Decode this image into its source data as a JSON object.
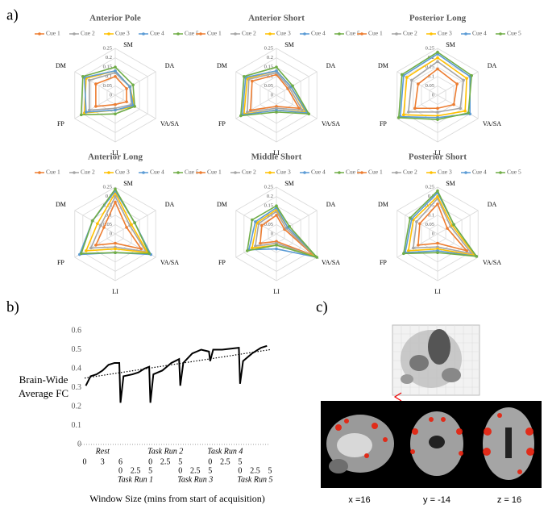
{
  "panel_labels": [
    "a)",
    "b)",
    "c)"
  ],
  "chart_data": [
    {
      "type": "radar",
      "title": "Anterior Pole",
      "categories": [
        "SM",
        "DA",
        "VA/SA",
        "LI",
        "FP",
        "DM"
      ],
      "rlim": [
        0,
        0.25
      ],
      "rticks": [
        0,
        0.05,
        0.1,
        0.15,
        0.2,
        0.25
      ],
      "series": [
        {
          "name": "Cue 1",
          "color": "#ed7d31",
          "values": [
            0.1,
            0.07,
            0.07,
            0.05,
            0.12,
            0.12
          ]
        },
        {
          "name": "Cue 2",
          "color": "#a5a5a5",
          "values": [
            0.12,
            0.09,
            0.1,
            0.07,
            0.16,
            0.16
          ]
        },
        {
          "name": "Cue 3",
          "color": "#ffc000",
          "values": [
            0.13,
            0.09,
            0.12,
            0.08,
            0.19,
            0.18
          ]
        },
        {
          "name": "Cue 4",
          "color": "#5b9bd5",
          "values": [
            0.13,
            0.09,
            0.11,
            0.08,
            0.18,
            0.19
          ]
        },
        {
          "name": "Cue 5",
          "color": "#70ad47",
          "values": [
            0.15,
            0.11,
            0.12,
            0.1,
            0.21,
            0.2
          ]
        }
      ]
    },
    {
      "type": "radar",
      "title": "Anterior Short",
      "categories": [
        "SM",
        "DA",
        "VA/SA",
        "LI",
        "FP",
        "DM"
      ],
      "rlim": [
        0,
        0.25
      ],
      "rticks": [
        0,
        0.05,
        0.1,
        0.15,
        0.2,
        0.25
      ],
      "series": [
        {
          "name": "Cue 1",
          "color": "#ed7d31",
          "values": [
            0.11,
            0.07,
            0.14,
            0.06,
            0.16,
            0.15
          ]
        },
        {
          "name": "Cue 2",
          "color": "#a5a5a5",
          "values": [
            0.12,
            0.08,
            0.16,
            0.07,
            0.18,
            0.17
          ]
        },
        {
          "name": "Cue 3",
          "color": "#ffc000",
          "values": [
            0.13,
            0.09,
            0.18,
            0.08,
            0.2,
            0.18
          ]
        },
        {
          "name": "Cue 4",
          "color": "#5b9bd5",
          "values": [
            0.13,
            0.09,
            0.19,
            0.08,
            0.21,
            0.19
          ]
        },
        {
          "name": "Cue 5",
          "color": "#70ad47",
          "values": [
            0.15,
            0.1,
            0.2,
            0.09,
            0.22,
            0.2
          ]
        }
      ]
    },
    {
      "type": "radar",
      "title": "Posterior Long",
      "categories": [
        "SM",
        "DA",
        "VA/SA",
        "LI",
        "FP",
        "DM"
      ],
      "rlim": [
        0,
        0.25
      ],
      "rticks": [
        0,
        0.05,
        0.1,
        0.15,
        0.2,
        0.25
      ],
      "series": [
        {
          "name": "Cue 1",
          "color": "#ed7d31",
          "values": [
            0.14,
            0.12,
            0.1,
            0.07,
            0.14,
            0.12
          ]
        },
        {
          "name": "Cue 2",
          "color": "#a5a5a5",
          "values": [
            0.18,
            0.16,
            0.14,
            0.09,
            0.18,
            0.16
          ]
        },
        {
          "name": "Cue 3",
          "color": "#ffc000",
          "values": [
            0.2,
            0.18,
            0.17,
            0.11,
            0.21,
            0.19
          ]
        },
        {
          "name": "Cue 4",
          "color": "#5b9bd5",
          "values": [
            0.22,
            0.2,
            0.2,
            0.12,
            0.23,
            0.21
          ]
        },
        {
          "name": "Cue 5",
          "color": "#70ad47",
          "values": [
            0.23,
            0.21,
            0.19,
            0.13,
            0.24,
            0.22
          ]
        }
      ]
    },
    {
      "type": "radar",
      "title": "Anterior Long",
      "categories": [
        "SM",
        "DA",
        "VA/SA",
        "LI",
        "FP",
        "DM"
      ],
      "rlim": [
        0,
        0.25
      ],
      "rticks": [
        0,
        0.05,
        0.1,
        0.15,
        0.2,
        0.25
      ],
      "series": [
        {
          "name": "Cue 1",
          "color": "#ed7d31",
          "values": [
            0.17,
            0.07,
            0.16,
            0.05,
            0.12,
            0.07
          ]
        },
        {
          "name": "Cue 2",
          "color": "#a5a5a5",
          "values": [
            0.2,
            0.09,
            0.19,
            0.07,
            0.15,
            0.09
          ]
        },
        {
          "name": "Cue 3",
          "color": "#ffc000",
          "values": [
            0.22,
            0.1,
            0.2,
            0.08,
            0.18,
            0.11
          ]
        },
        {
          "name": "Cue 4",
          "color": "#5b9bd5",
          "values": [
            0.23,
            0.12,
            0.22,
            0.1,
            0.22,
            0.14
          ]
        },
        {
          "name": "Cue 5",
          "color": "#70ad47",
          "values": [
            0.24,
            0.12,
            0.21,
            0.1,
            0.21,
            0.14
          ]
        }
      ]
    },
    {
      "type": "radar",
      "title": "Middle Short",
      "categories": [
        "SM",
        "DA",
        "VA/SA",
        "LI",
        "FP",
        "DM"
      ],
      "rlim": [
        0,
        0.25
      ],
      "rticks": [
        0,
        0.05,
        0.1,
        0.15,
        0.2,
        0.25
      ],
      "series": [
        {
          "name": "Cue 1",
          "color": "#ed7d31",
          "values": [
            0.1,
            0.05,
            0.23,
            0.04,
            0.1,
            0.09
          ]
        },
        {
          "name": "Cue 2",
          "color": "#a5a5a5",
          "values": [
            0.12,
            0.06,
            0.24,
            0.05,
            0.13,
            0.11
          ]
        },
        {
          "name": "Cue 3",
          "color": "#ffc000",
          "values": [
            0.13,
            0.07,
            0.24,
            0.06,
            0.15,
            0.12
          ]
        },
        {
          "name": "Cue 4",
          "color": "#5b9bd5",
          "values": [
            0.14,
            0.07,
            0.25,
            0.08,
            0.17,
            0.13
          ]
        },
        {
          "name": "Cue 5",
          "color": "#70ad47",
          "values": [
            0.15,
            0.08,
            0.25,
            0.06,
            0.18,
            0.15
          ]
        }
      ]
    },
    {
      "type": "radar",
      "title": "Posterior Short",
      "categories": [
        "SM",
        "DA",
        "VA/SA",
        "LI",
        "FP",
        "DM"
      ],
      "rlim": [
        0,
        0.25
      ],
      "rticks": [
        0,
        0.05,
        0.1,
        0.15,
        0.2,
        0.25
      ],
      "series": [
        {
          "name": "Cue 1",
          "color": "#ed7d31",
          "values": [
            0.16,
            0.06,
            0.18,
            0.05,
            0.12,
            0.11
          ]
        },
        {
          "name": "Cue 2",
          "color": "#a5a5a5",
          "values": [
            0.19,
            0.08,
            0.21,
            0.07,
            0.15,
            0.13
          ]
        },
        {
          "name": "Cue 3",
          "color": "#ffc000",
          "values": [
            0.2,
            0.09,
            0.23,
            0.08,
            0.18,
            0.15
          ]
        },
        {
          "name": "Cue 4",
          "color": "#5b9bd5",
          "values": [
            0.22,
            0.1,
            0.24,
            0.09,
            0.2,
            0.16
          ]
        },
        {
          "name": "Cue 5",
          "color": "#70ad47",
          "values": [
            0.23,
            0.1,
            0.24,
            0.1,
            0.21,
            0.17
          ]
        }
      ]
    },
    {
      "type": "line",
      "y_label": "Brain-Wide Average FC",
      "x_label": "Window Size (mins from start of acquisition)",
      "color": "#000000",
      "x": [
        0.2,
        1,
        2,
        3,
        4,
        5,
        5.8,
        6,
        6.5,
        8,
        9,
        10,
        10.8,
        11,
        11.5,
        13,
        14.5,
        15.8,
        16,
        16.5,
        18,
        19.5,
        20.8,
        21,
        21.5,
        23,
        25.8,
        26,
        26.5,
        28,
        29.5,
        30.5
      ],
      "values": [
        0.31,
        0.36,
        0.37,
        0.39,
        0.42,
        0.43,
        0.43,
        0.22,
        0.36,
        0.37,
        0.38,
        0.4,
        0.41,
        0.22,
        0.37,
        0.39,
        0.43,
        0.45,
        0.31,
        0.43,
        0.48,
        0.5,
        0.49,
        0.44,
        0.5,
        0.5,
        0.51,
        0.32,
        0.44,
        0.48,
        0.51,
        0.52
      ],
      "trendline": {
        "x": [
          0,
          31
        ],
        "values": [
          0.35,
          0.5
        ]
      },
      "xlim": [
        0,
        31
      ],
      "ylim": [
        0,
        0.6
      ],
      "yticks": [
        0,
        0.1,
        0.2,
        0.3,
        0.4,
        0.5,
        0.6
      ],
      "x_segments": [
        {
          "name": "Rest",
          "ticks": [
            0,
            3,
            6
          ]
        },
        {
          "name": "Task Run 1",
          "ticks": [
            {
              "value": 6,
              "label": "0"
            },
            {
              "value": 8.5,
              "label": "2.5"
            },
            {
              "value": 11,
              "label": "5"
            }
          ]
        },
        {
          "name": "Task Run 2",
          "ticks": [
            {
              "value": 11,
              "label": "0"
            },
            {
              "value": 13.5,
              "label": "2.5"
            },
            {
              "value": 16,
              "label": "5"
            }
          ]
        },
        {
          "name": "Task Run 3",
          "ticks": [
            {
              "value": 16,
              "label": "0"
            },
            {
              "value": 18.5,
              "label": "2.5"
            },
            {
              "value": 21,
              "label": "5"
            }
          ]
        },
        {
          "name": "Task Run 4",
          "ticks": [
            {
              "value": 21,
              "label": "0"
            },
            {
              "value": 23.5,
              "label": "2.5"
            },
            {
              "value": 26,
              "label": "5"
            }
          ]
        },
        {
          "name": "Task Run 5",
          "ticks": [
            {
              "value": 26,
              "label": "0"
            },
            {
              "value": 28.5,
              "label": "2.5"
            },
            {
              "value": 31,
              "label": "5"
            }
          ]
        }
      ]
    }
  ],
  "brain_slices": [
    "x =16",
    "y = -14",
    "z = 16"
  ]
}
